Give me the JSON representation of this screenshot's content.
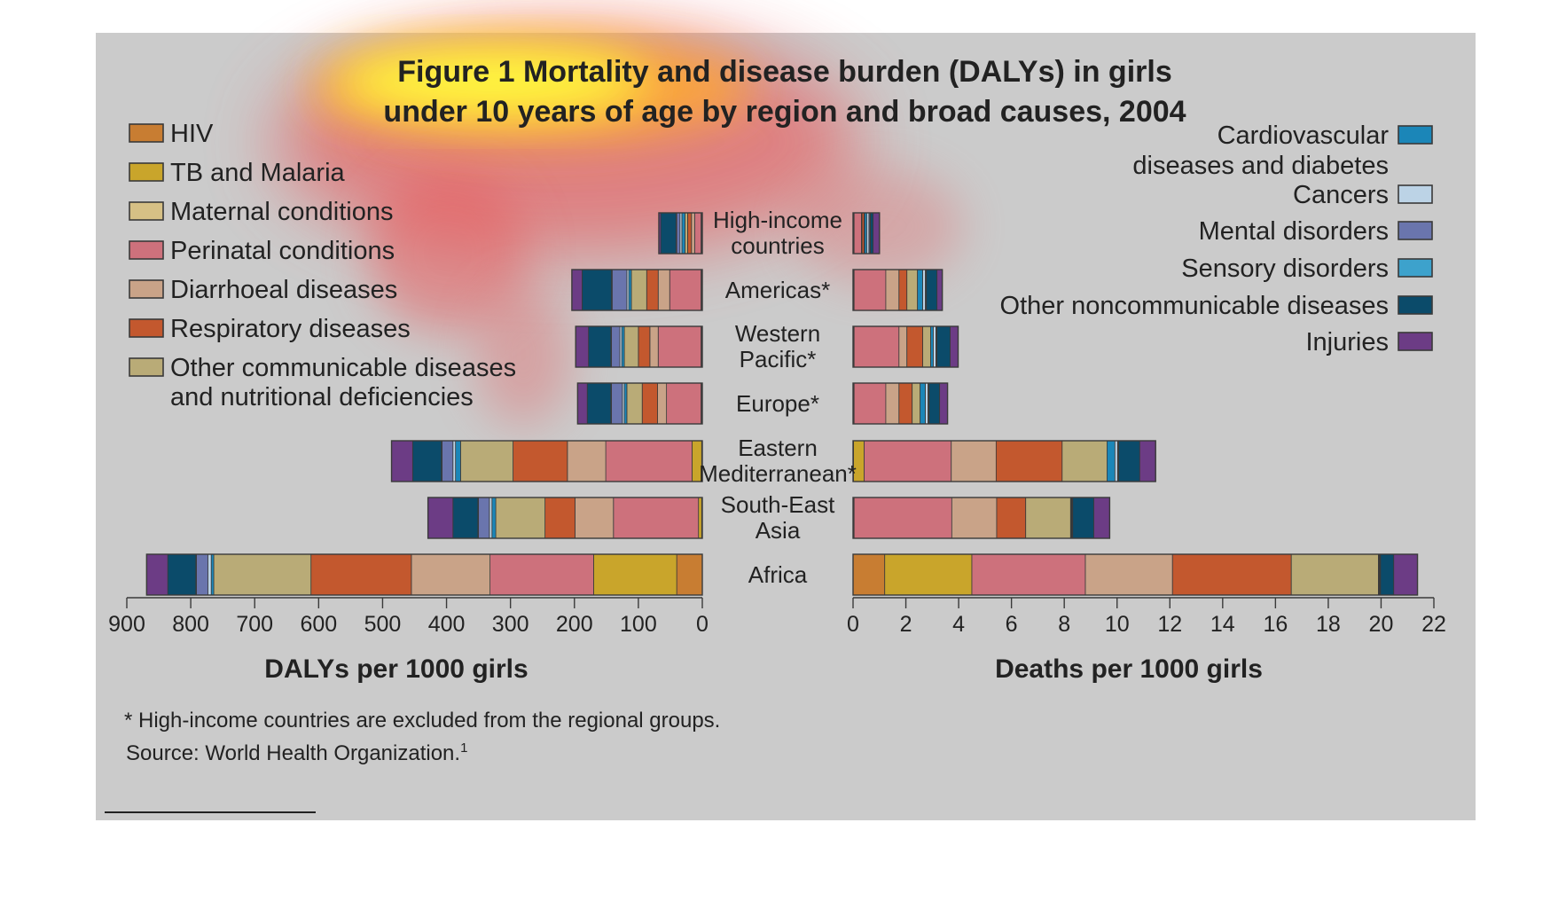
{
  "title_line1": "Figure 1 Mortality and disease burden (DALYs) in girls",
  "title_line2": "under 10 years of age by region and broad causes, 2004",
  "footnote": "* High-income countries are excluded from the regional groups.",
  "source": "Source: World Health Organization.",
  "source_sup": "1",
  "colors": {
    "panel": "#cbcbcb",
    "bar_outline": "#3a3a3a",
    "heat_core": "#ffff40",
    "heat_mid": "#ffaa33",
    "heat_outer": "#e8585a",
    "text": "#222222"
  },
  "chart_data": [
    {
      "type": "bar",
      "orientation": "horizontal",
      "stacked": true,
      "axis_direction": "reversed",
      "xlabel": "DALYs per 1000 girls",
      "xlim": [
        0,
        900
      ],
      "ticks": [
        "900",
        "800",
        "700",
        "600",
        "500",
        "400",
        "300",
        "200",
        "100",
        "0"
      ],
      "categories": [
        [
          "High-income",
          "countries"
        ],
        [
          "Americas*"
        ],
        [
          "Western",
          "Pacific*"
        ],
        [
          "Europe*"
        ],
        [
          "Eastern",
          "Mediterranean*"
        ],
        [
          "South-East",
          "Asia"
        ],
        [
          "Africa"
        ]
      ],
      "series": [
        {
          "name": "HIV",
          "values": [
            1,
            1,
            1,
            1,
            1,
            1,
            40
          ]
        },
        {
          "name": "TB and Malaria",
          "values": [
            1,
            1,
            1,
            1,
            15,
            5,
            130
          ]
        },
        {
          "name": "Perinatal conditions",
          "values": [
            10,
            49,
            67,
            54,
            135,
            133,
            162
          ]
        },
        {
          "name": "Diarrhoeal diseases",
          "values": [
            5,
            18,
            13,
            14,
            60,
            60,
            123
          ]
        },
        {
          "name": "Respiratory diseases",
          "values": [
            6,
            18,
            18,
            24,
            85,
            47,
            157
          ]
        },
        {
          "name": "Maternal conditions",
          "values": [
            0,
            0,
            0,
            0,
            0,
            0,
            0
          ]
        },
        {
          "name": "Other communicable diseases and nutritional deficiencies",
          "values": [
            4,
            24,
            22,
            24,
            82,
            77,
            152
          ]
        },
        {
          "name": "Cardiovascular diseases and diabetes",
          "values": [
            5,
            4,
            4,
            4,
            8,
            6,
            4
          ]
        },
        {
          "name": "Cancers",
          "values": [
            3,
            3,
            3,
            3,
            4,
            4,
            5
          ]
        },
        {
          "name": "Mental disorders",
          "values": [
            5,
            23,
            13,
            17,
            17,
            17,
            18
          ]
        },
        {
          "name": "Sensory disorders",
          "values": [
            1,
            1,
            1,
            1,
            1,
            1,
            1
          ]
        },
        {
          "name": "Other noncommunicable diseases",
          "values": [
            24,
            46,
            35,
            37,
            45,
            39,
            44
          ]
        },
        {
          "name": "Injuries",
          "values": [
            3,
            16,
            20,
            15,
            33,
            39,
            33
          ]
        }
      ]
    },
    {
      "type": "bar",
      "orientation": "horizontal",
      "stacked": true,
      "xlabel": "Deaths per 1000 girls",
      "xlim": [
        0,
        22
      ],
      "ticks": [
        "0",
        "2",
        "4",
        "6",
        "8",
        "10",
        "12",
        "14",
        "16",
        "18",
        "20",
        "22"
      ],
      "categories": [
        [
          "High-income",
          "countries"
        ],
        [
          "Americas*"
        ],
        [
          "Western",
          "Pacific*"
        ],
        [
          "Europe*"
        ],
        [
          "Eastern",
          "Mediterranean*"
        ],
        [
          "South-East",
          "Asia"
        ],
        [
          "Africa"
        ]
      ],
      "series": [
        {
          "name": "HIV",
          "values": [
            0.02,
            0.02,
            0.02,
            0.02,
            0.02,
            0.02,
            1.2
          ]
        },
        {
          "name": "TB and Malaria",
          "values": [
            0.02,
            0.02,
            0.02,
            0.02,
            0.4,
            0.02,
            3.3
          ]
        },
        {
          "name": "Perinatal conditions",
          "values": [
            0.28,
            1.2,
            1.7,
            1.2,
            3.3,
            3.7,
            4.3
          ]
        },
        {
          "name": "Diarrhoeal diseases",
          "values": [
            0.02,
            0.5,
            0.3,
            0.5,
            1.7,
            1.7,
            3.3
          ]
        },
        {
          "name": "Respiratory diseases",
          "values": [
            0.08,
            0.3,
            0.6,
            0.5,
            2.5,
            1.1,
            4.5
          ]
        },
        {
          "name": "Maternal conditions",
          "values": [
            0,
            0,
            0,
            0,
            0,
            0,
            0
          ]
        },
        {
          "name": "Other communicable diseases and nutritional deficiencies",
          "values": [
            0.02,
            0.4,
            0.3,
            0.3,
            1.7,
            1.7,
            3.3
          ]
        },
        {
          "name": "Cardiovascular diseases and diabetes",
          "values": [
            0.08,
            0.2,
            0.1,
            0.2,
            0.3,
            0.02,
            0.02
          ]
        },
        {
          "name": "Cancers",
          "values": [
            0.08,
            0.1,
            0.1,
            0.1,
            0.1,
            0.02,
            0.02
          ]
        },
        {
          "name": "Mental disorders",
          "values": [
            0.04,
            0.02,
            0.02,
            0.02,
            0.02,
            0.02,
            0.02
          ]
        },
        {
          "name": "Sensory disorders",
          "values": [
            0.02,
            0.02,
            0.02,
            0.02,
            0.02,
            0.02,
            0.02
          ]
        },
        {
          "name": "Other noncommunicable diseases",
          "values": [
            0.1,
            0.4,
            0.5,
            0.4,
            0.8,
            0.8,
            0.5
          ]
        },
        {
          "name": "Injuries",
          "values": [
            0.24,
            0.2,
            0.3,
            0.3,
            0.6,
            0.6,
            0.9
          ]
        }
      ]
    }
  ],
  "legend_left": [
    {
      "lines": [
        "HIV"
      ],
      "color": "#c87d32"
    },
    {
      "lines": [
        "TB and Malaria"
      ],
      "color": "#c9a52b"
    },
    {
      "lines": [
        "Maternal conditions"
      ],
      "color": "#d6c085"
    },
    {
      "lines": [
        "Perinatal conditions"
      ],
      "color": "#cd717c"
    },
    {
      "lines": [
        "Diarrhoeal diseases"
      ],
      "color": "#c9a388"
    },
    {
      "lines": [
        "Respiratory diseases"
      ],
      "color": "#c3582e"
    },
    {
      "lines": [
        "Other communicable diseases",
        "and nutritional deficiencies"
      ],
      "color": "#b9ab77"
    }
  ],
  "legend_right": [
    {
      "lines": [
        "Cardiovascular",
        "diseases and diabetes"
      ],
      "color": "#1b86b8"
    },
    {
      "lines": [
        "Cancers"
      ],
      "color": "#bcd3e6"
    },
    {
      "lines": [
        "Mental disorders"
      ],
      "color": "#6a75ad"
    },
    {
      "lines": [
        "Sensory disorders"
      ],
      "color": "#3da2cc"
    },
    {
      "lines": [
        "Other noncommunicable diseases"
      ],
      "color": "#0b4b6a"
    },
    {
      "lines": [
        "Injuries"
      ],
      "color": "#6c3c85"
    }
  ]
}
